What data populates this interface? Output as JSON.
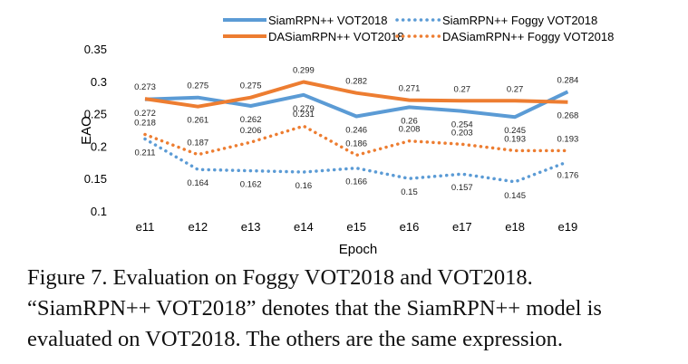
{
  "chart_data": {
    "type": "line",
    "xlabel": "Epoch",
    "ylabel": "EAO",
    "categories": [
      "e11",
      "e12",
      "e13",
      "e14",
      "e15",
      "e16",
      "e17",
      "e18",
      "e19"
    ],
    "ylim": [
      0.1,
      0.35
    ],
    "yticks": [
      "0.1",
      "0.15",
      "0.2",
      "0.25",
      "0.3",
      "0.35"
    ],
    "grid": false,
    "legend_position": "top",
    "series": [
      {
        "name": "SiamRPN++ VOT2018",
        "color": "#5b9bd5",
        "style": "solid",
        "values": [
          0.272,
          0.275,
          0.262,
          0.279,
          0.246,
          0.26,
          0.254,
          0.245,
          0.284
        ],
        "labels": [
          "0.272",
          "0.275",
          "0.262",
          "0.279",
          "0.246",
          "0.26",
          "0.254",
          "0.245",
          "0.284"
        ]
      },
      {
        "name": "DASiamRPN++ VOT2018",
        "color": "#ed7d31",
        "style": "solid",
        "values": [
          0.273,
          0.261,
          0.275,
          0.299,
          0.282,
          0.271,
          0.27,
          0.27,
          0.268
        ],
        "labels": [
          "0.273",
          "0.261",
          "0.275",
          "0.299",
          "0.282",
          "0.271",
          "0.27",
          "0.27",
          "0.268"
        ]
      },
      {
        "name": "SiamRPN++ Foggy VOT2018",
        "color": "#5b9bd5",
        "style": "dotted",
        "values": [
          0.211,
          0.164,
          0.162,
          0.16,
          0.166,
          0.15,
          0.157,
          0.145,
          0.176
        ],
        "labels": [
          "0.211",
          "0.164",
          "0.162",
          "0.16",
          "0.166",
          "0.15",
          "0.157",
          "0.145",
          "0.176"
        ]
      },
      {
        "name": "DASiamRPN++ Foggy VOT2018",
        "color": "#ed7d31",
        "style": "dotted",
        "values": [
          0.218,
          0.187,
          0.206,
          0.231,
          0.186,
          0.208,
          0.203,
          0.193,
          0.193
        ],
        "labels": [
          "0.218",
          "0.187",
          "0.206",
          "0.231",
          "0.186",
          "0.208",
          "0.203",
          "0.193",
          "0.193"
        ]
      }
    ]
  },
  "caption": {
    "line1": "Figure 7. Evaluation on Foggy VOT2018 and VOT2018.",
    "line2": "“SiamRPN++ VOT2018” denotes that the SiamRPN++ model is",
    "line3": "evaluated on VOT2018. The others are the same expression."
  }
}
